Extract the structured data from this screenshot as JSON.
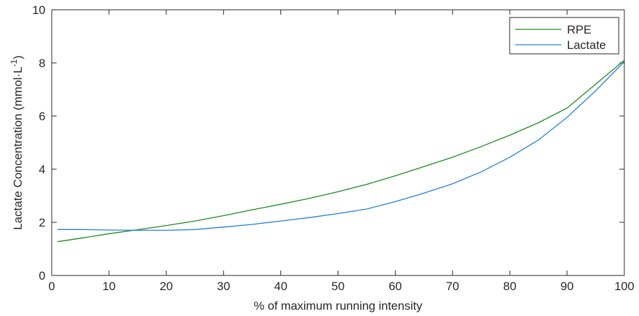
{
  "chart_data": {
    "type": "line",
    "xlabel": "% of maximum running intensity",
    "ylabel_main": "Lactate Concentration (mmol·L",
    "ylabel_sup": "-1",
    "ylabel_tail": ")",
    "xlim": [
      0,
      100
    ],
    "ylim": [
      0,
      10
    ],
    "xticks": [
      "0",
      "10",
      "20",
      "30",
      "40",
      "50",
      "60",
      "70",
      "80",
      "90",
      "100"
    ],
    "yticks": [
      "0",
      "2",
      "4",
      "6",
      "8",
      "10"
    ],
    "grid": false,
    "legend_position": "top-right",
    "series": [
      {
        "name": "RPE",
        "color": "#1a8a1a",
        "x": [
          1,
          5,
          10,
          15,
          20,
          25,
          30,
          35,
          40,
          45,
          50,
          55,
          60,
          65,
          70,
          75,
          80,
          85,
          90,
          95,
          100
        ],
        "y": [
          1.27,
          1.4,
          1.57,
          1.72,
          1.88,
          2.05,
          2.25,
          2.47,
          2.68,
          2.9,
          3.15,
          3.43,
          3.75,
          4.1,
          4.45,
          4.85,
          5.28,
          5.75,
          6.3,
          7.2,
          8.1
        ]
      },
      {
        "name": "Lactate",
        "color": "#1f7fe0",
        "x": [
          1,
          5,
          10,
          15,
          20,
          25,
          30,
          35,
          40,
          45,
          50,
          55,
          60,
          65,
          70,
          75,
          80,
          85,
          90,
          95,
          100
        ],
        "y": [
          1.73,
          1.73,
          1.71,
          1.7,
          1.7,
          1.73,
          1.82,
          1.92,
          2.05,
          2.18,
          2.33,
          2.5,
          2.78,
          3.1,
          3.45,
          3.9,
          4.45,
          5.1,
          5.95,
          6.95,
          8.05
        ]
      }
    ]
  }
}
